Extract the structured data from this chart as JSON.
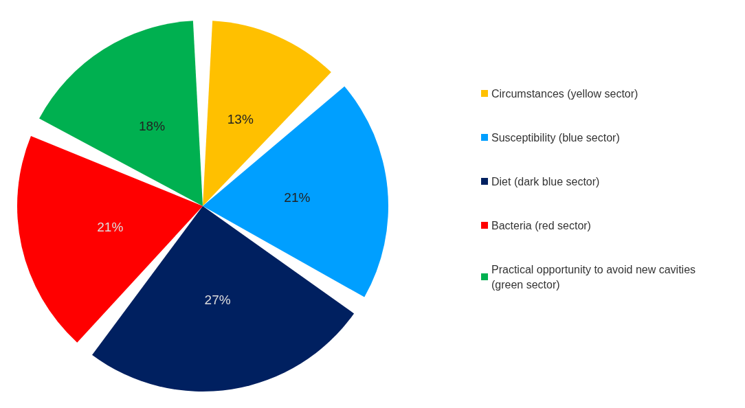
{
  "chart_data": {
    "type": "pie",
    "categories": [
      "Circumstances (yellow sector)",
      "Susceptibility (blue sector)",
      "Diet (dark blue sector)",
      "Bacteria (red sector)",
      "Practical opportunity to avoid new cavities (green sector)"
    ],
    "values": [
      13,
      21,
      27,
      21,
      18
    ],
    "colors": [
      "#ffc000",
      "#009fff",
      "#002060",
      "#ff0000",
      "#00b050"
    ],
    "value_labels": [
      "13%",
      "21%",
      "27%",
      "21%",
      "18%"
    ],
    "legend": "right"
  }
}
